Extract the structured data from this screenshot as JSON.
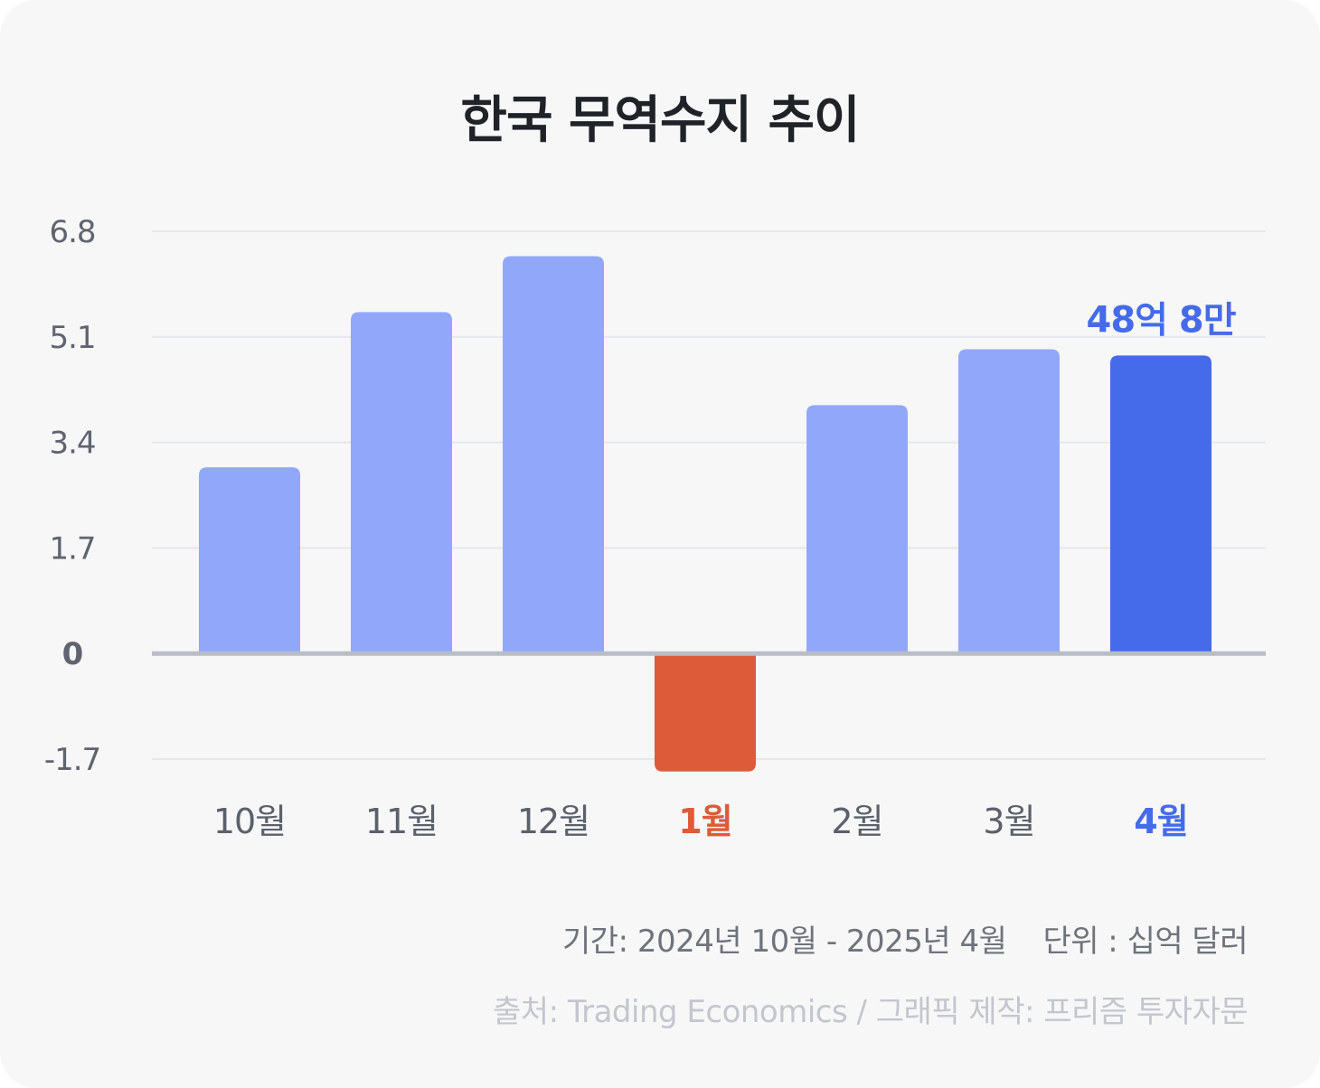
{
  "chart_data": {
    "type": "bar",
    "title": "한국 무역수지 추이",
    "categories": [
      "10월",
      "11월",
      "12월",
      "1월",
      "2월",
      "3월",
      "4월"
    ],
    "values": [
      3.0,
      5.5,
      6.4,
      -1.9,
      4.0,
      4.9,
      4.8
    ],
    "yticks": [
      "-1.7",
      "0",
      "1.7",
      "3.4",
      "5.1",
      "6.8"
    ],
    "ylim": [
      -1.7,
      6.8
    ],
    "grid": true,
    "annotation": {
      "category": "4월",
      "text": "48억 8만"
    },
    "colors": {
      "bar": "#91a8fa",
      "highlight": "#456bea",
      "negative": "#de5b3a",
      "axis_label": "#5f6470",
      "zero_line": "#b9bdc6",
      "grid": "#e6e7ea"
    }
  },
  "footer": {
    "period": "기간: 2024년 10월 - 2025년 4월",
    "unit": "단위 : 십억 달러",
    "source": "출처: Trading Economics / 그래픽 제작: 프리즘 투자자문"
  }
}
